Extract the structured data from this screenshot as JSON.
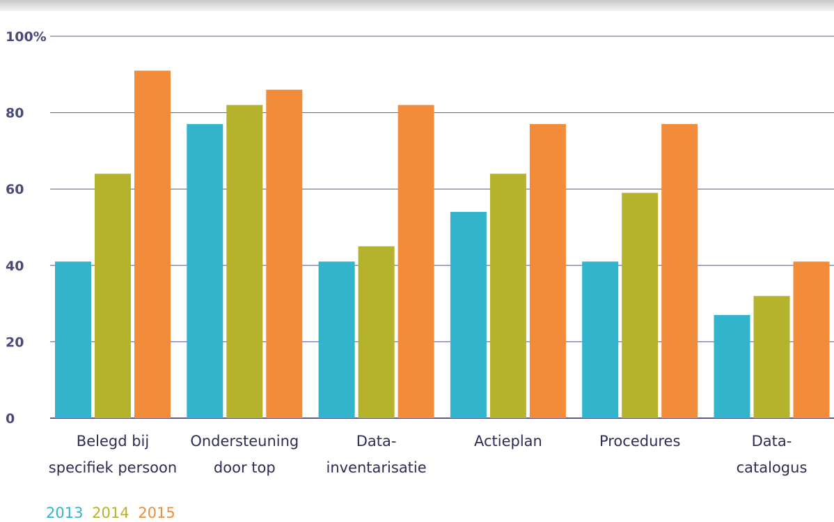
{
  "chart_data": {
    "type": "bar",
    "title": "",
    "xlabel": "",
    "ylabel": "",
    "ylim": [
      0,
      100
    ],
    "yticks": [
      "0",
      "20",
      "40",
      "60",
      "80",
      "100%"
    ],
    "ytick_values": [
      0,
      20,
      40,
      60,
      80,
      100
    ],
    "grid": true,
    "legend_position": "bottom-left",
    "categories": [
      [
        "Belegd bij",
        "specifiek persoon"
      ],
      [
        "Ondersteuning",
        "door top"
      ],
      [
        "Data-",
        "inventarisatie"
      ],
      [
        "Actieplan"
      ],
      [
        "Procedures"
      ],
      [
        "Data-",
        "catalogus"
      ]
    ],
    "series": [
      {
        "name": "2013",
        "color": "#31b4cc",
        "values": [
          41,
          77,
          41,
          54,
          41,
          27
        ]
      },
      {
        "name": "2014",
        "color": "#b5b22c",
        "values": [
          64,
          82,
          45,
          64,
          59,
          32
        ]
      },
      {
        "name": "2015",
        "color": "#f28c3a",
        "values": [
          91,
          86,
          82,
          77,
          77,
          41
        ]
      }
    ],
    "colors": {
      "grid": "#5a5a8e",
      "tick_text": "#4a4a7a",
      "category_text": "#2c2c54"
    }
  }
}
